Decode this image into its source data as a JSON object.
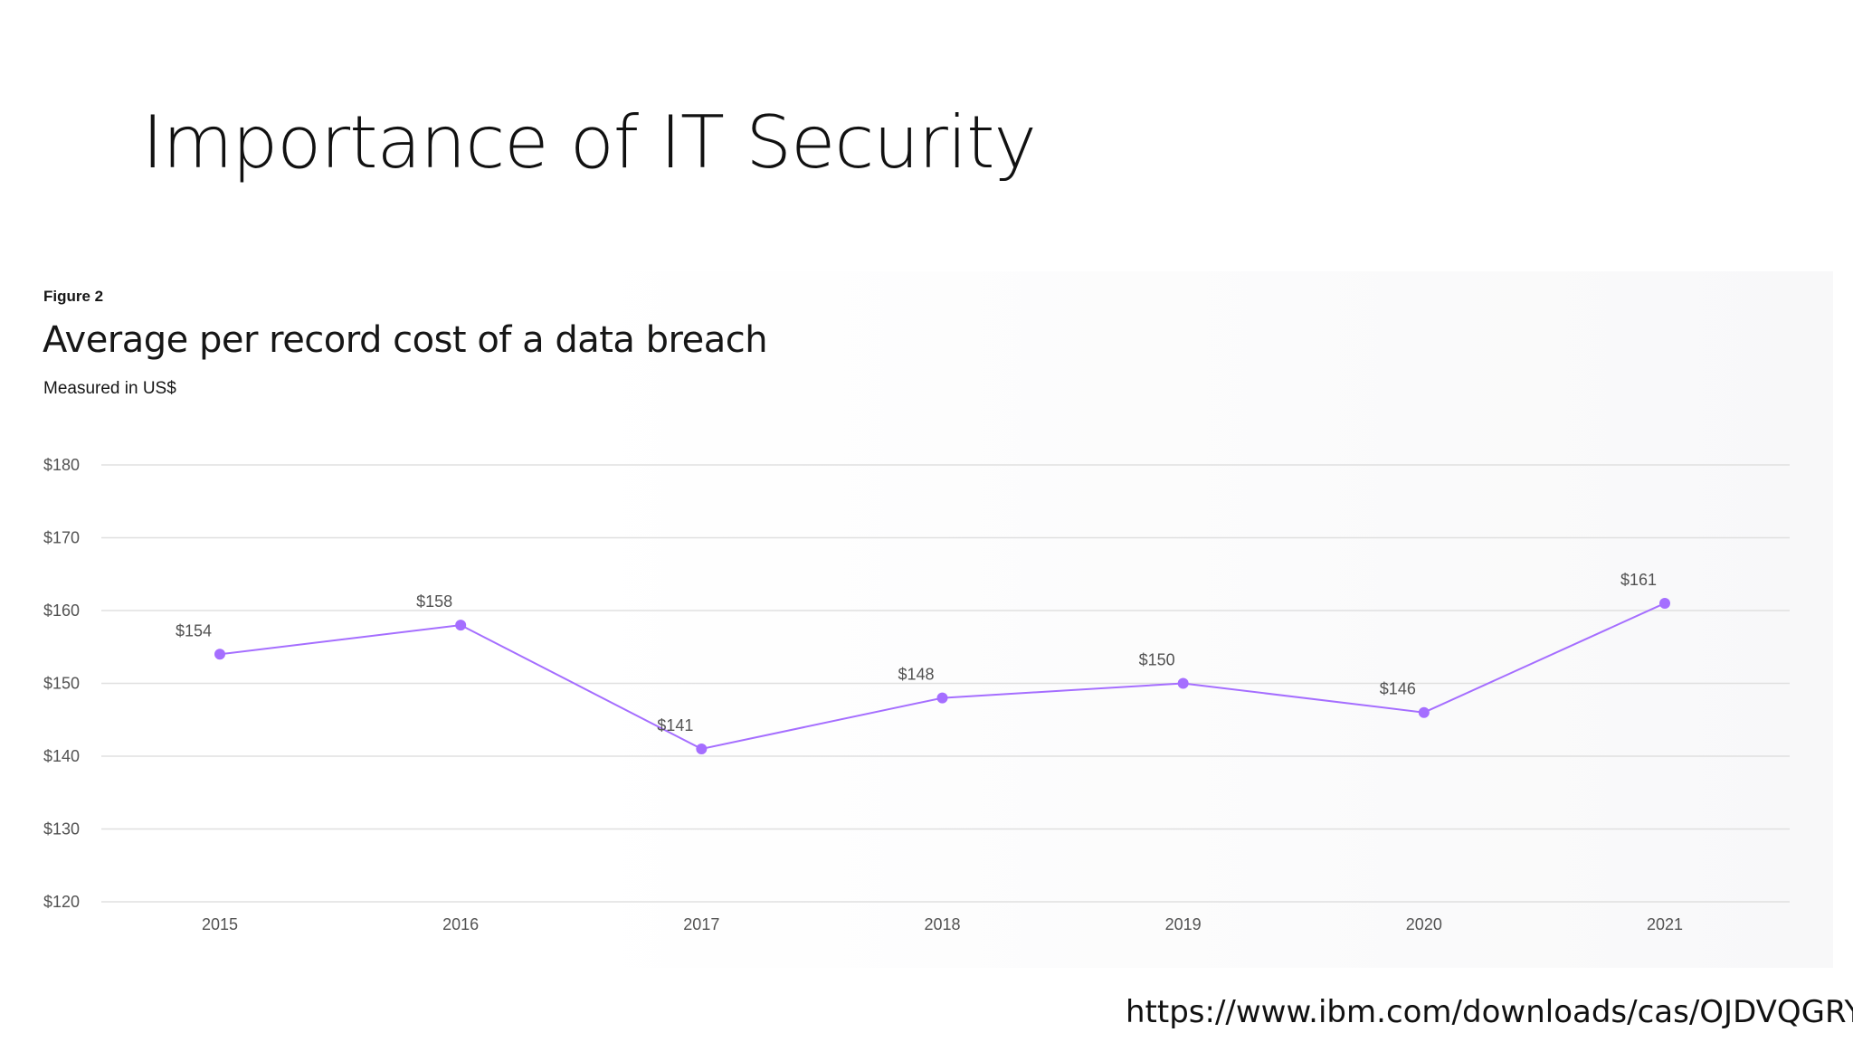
{
  "slide": {
    "title": "Importance of IT Security",
    "source": "https://www.ibm.com/downloads/cas/OJDVQGRY"
  },
  "figure": {
    "label": "Figure 2",
    "title": "Average per record cost of a data breach",
    "subtitle": "Measured in US$"
  },
  "chart_data": {
    "type": "line",
    "title": "Average per record cost of a data breach",
    "subtitle": "Measured in US$",
    "categories": [
      "2015",
      "2016",
      "2017",
      "2018",
      "2019",
      "2020",
      "2021"
    ],
    "values": [
      154,
      158,
      141,
      148,
      150,
      146,
      161
    ],
    "data_labels": [
      "$154",
      "$158",
      "$141",
      "$148",
      "$150",
      "$146",
      "$161"
    ],
    "y_ticks": [
      120,
      130,
      140,
      150,
      160,
      170,
      180
    ],
    "y_tick_labels": [
      "$120",
      "$130",
      "$140",
      "$150",
      "$160",
      "$170",
      "$180"
    ],
    "ylim": [
      120,
      180
    ],
    "xlabel": "",
    "ylabel": "",
    "grid": true,
    "line_color": "#a56eff",
    "legend": "none"
  }
}
